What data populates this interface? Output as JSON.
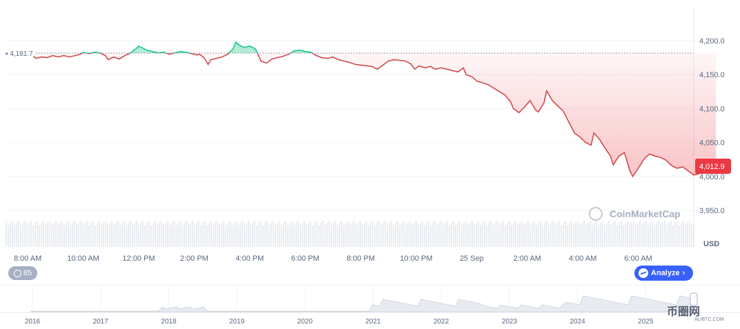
{
  "chart_data": {
    "type": "line",
    "currency": "USD",
    "reference_price": 4181.7,
    "reference_label": "4,181.7",
    "current_price": 4012.9,
    "current_label": "4,012.9",
    "ylim": [
      3940,
      4220
    ],
    "y_ticks": [
      {
        "v": 4200,
        "label": "4,200.0"
      },
      {
        "v": 4150,
        "label": "4,150.0"
      },
      {
        "v": 4100,
        "label": "4,100.0"
      },
      {
        "v": 4050,
        "label": "4,050.0"
      },
      {
        "v": 4000,
        "label": "4,000.0"
      },
      {
        "v": 3950,
        "label": "3,950.0"
      }
    ],
    "x_tick_labels": [
      "8:00 AM",
      "10:00 AM",
      "12:00 PM",
      "2:00 PM",
      "4:00 PM",
      "6:00 PM",
      "8:00 PM",
      "10:00 PM",
      "25 Sep",
      "2:00 AM",
      "4:00 AM",
      "6:00 AM"
    ],
    "x_tick_hours": [
      1,
      3,
      5,
      7,
      9,
      11,
      13,
      15,
      17,
      19,
      21,
      23
    ],
    "x_range_hours": [
      0.2,
      25.0
    ],
    "series": [
      {
        "points": [
          [
            1.2,
            4177
          ],
          [
            1.3,
            4174
          ],
          [
            1.5,
            4176
          ],
          [
            1.7,
            4175
          ],
          [
            1.9,
            4178
          ],
          [
            2.1,
            4176
          ],
          [
            2.3,
            4178
          ],
          [
            2.5,
            4176
          ],
          [
            2.7,
            4178
          ],
          [
            2.9,
            4180
          ],
          [
            3.0,
            4183
          ],
          [
            3.2,
            4181
          ],
          [
            3.4,
            4183
          ],
          [
            3.6,
            4182
          ],
          [
            3.8,
            4178
          ],
          [
            3.9,
            4172
          ],
          [
            4.1,
            4176
          ],
          [
            4.3,
            4173
          ],
          [
            4.5,
            4178
          ],
          [
            4.7,
            4182
          ],
          [
            4.9,
            4188
          ],
          [
            5.0,
            4192
          ],
          [
            5.1,
            4190
          ],
          [
            5.3,
            4186
          ],
          [
            5.5,
            4184
          ],
          [
            5.7,
            4182
          ],
          [
            5.9,
            4183
          ],
          [
            6.1,
            4180
          ],
          [
            6.3,
            4182
          ],
          [
            6.5,
            4184
          ],
          [
            6.7,
            4183
          ],
          [
            6.9,
            4181
          ],
          [
            7.1,
            4179
          ],
          [
            7.2,
            4180
          ],
          [
            7.35,
            4175
          ],
          [
            7.5,
            4165
          ],
          [
            7.6,
            4172
          ],
          [
            7.8,
            4174
          ],
          [
            8.0,
            4176
          ],
          [
            8.2,
            4180
          ],
          [
            8.4,
            4188
          ],
          [
            8.5,
            4198
          ],
          [
            8.6,
            4194
          ],
          [
            8.8,
            4190
          ],
          [
            9.0,
            4192
          ],
          [
            9.2,
            4188
          ],
          [
            9.3,
            4180
          ],
          [
            9.4,
            4170
          ],
          [
            9.6,
            4167
          ],
          [
            9.8,
            4173
          ],
          [
            10.0,
            4175
          ],
          [
            10.2,
            4177
          ],
          [
            10.4,
            4180
          ],
          [
            10.6,
            4185
          ],
          [
            10.8,
            4186
          ],
          [
            11.0,
            4184
          ],
          [
            11.2,
            4183
          ],
          [
            11.4,
            4178
          ],
          [
            11.6,
            4175
          ],
          [
            11.8,
            4174
          ],
          [
            12.0,
            4176
          ],
          [
            12.2,
            4172
          ],
          [
            12.4,
            4170
          ],
          [
            12.6,
            4168
          ],
          [
            12.8,
            4165
          ],
          [
            13.0,
            4164
          ],
          [
            13.2,
            4163
          ],
          [
            13.4,
            4162
          ],
          [
            13.6,
            4158
          ],
          [
            13.8,
            4164
          ],
          [
            14.0,
            4170
          ],
          [
            14.2,
            4172
          ],
          [
            14.4,
            4171
          ],
          [
            14.6,
            4170
          ],
          [
            14.8,
            4166
          ],
          [
            14.95,
            4158
          ],
          [
            15.1,
            4163
          ],
          [
            15.3,
            4160
          ],
          [
            15.5,
            4162
          ],
          [
            15.7,
            4158
          ],
          [
            15.9,
            4160
          ],
          [
            16.1,
            4158
          ],
          [
            16.3,
            4156
          ],
          [
            16.5,
            4154
          ],
          [
            16.7,
            4160
          ],
          [
            16.8,
            4150
          ],
          [
            17.0,
            4147
          ],
          [
            17.2,
            4140
          ],
          [
            17.4,
            4138
          ],
          [
            17.6,
            4135
          ],
          [
            17.8,
            4130
          ],
          [
            18.0,
            4125
          ],
          [
            18.2,
            4120
          ],
          [
            18.4,
            4110
          ],
          [
            18.5,
            4100
          ],
          [
            18.7,
            4094
          ],
          [
            18.9,
            4102
          ],
          [
            19.1,
            4112
          ],
          [
            19.3,
            4098
          ],
          [
            19.4,
            4095
          ],
          [
            19.6,
            4108
          ],
          [
            19.7,
            4126
          ],
          [
            19.9,
            4112
          ],
          [
            20.1,
            4104
          ],
          [
            20.3,
            4096
          ],
          [
            20.5,
            4080
          ],
          [
            20.7,
            4064
          ],
          [
            20.9,
            4058
          ],
          [
            21.1,
            4050
          ],
          [
            21.3,
            4046
          ],
          [
            21.4,
            4064
          ],
          [
            21.6,
            4055
          ],
          [
            21.8,
            4042
          ],
          [
            22.0,
            4030
          ],
          [
            22.1,
            4017
          ],
          [
            22.3,
            4030
          ],
          [
            22.5,
            4035
          ],
          [
            22.6,
            4022
          ],
          [
            22.7,
            4008
          ],
          [
            22.8,
            4000
          ],
          [
            23.0,
            4012
          ],
          [
            23.2,
            4025
          ],
          [
            23.4,
            4033
          ],
          [
            23.6,
            4030
          ],
          [
            23.8,
            4028
          ],
          [
            24.0,
            4024
          ],
          [
            24.2,
            4016
          ],
          [
            24.4,
            4012
          ],
          [
            24.6,
            4014
          ],
          [
            24.8,
            4008
          ],
          [
            25.0,
            4002
          ],
          [
            25.2,
            4004
          ],
          [
            25.4,
            4012
          ],
          [
            25.6,
            4014
          ],
          [
            25.8,
            4015
          ]
        ]
      }
    ]
  },
  "badges": {
    "history_count": "85",
    "analyze_label": "Analyze"
  },
  "watermark": "CoinMarketCap",
  "axis_unit": "USD",
  "overview": {
    "year_labels": [
      "2016",
      "2017",
      "2018",
      "2019",
      "2020",
      "2021",
      "2022",
      "2023",
      "2024",
      "2025"
    ]
  },
  "corner_logo": {
    "text": "币圈网",
    "sub": "ALIBTC.COM"
  },
  "colors": {
    "up": "#16c784",
    "down": "#ea3943",
    "down_line": "#d04a4a",
    "grid": "#eff2f5",
    "text": "#58667e"
  }
}
